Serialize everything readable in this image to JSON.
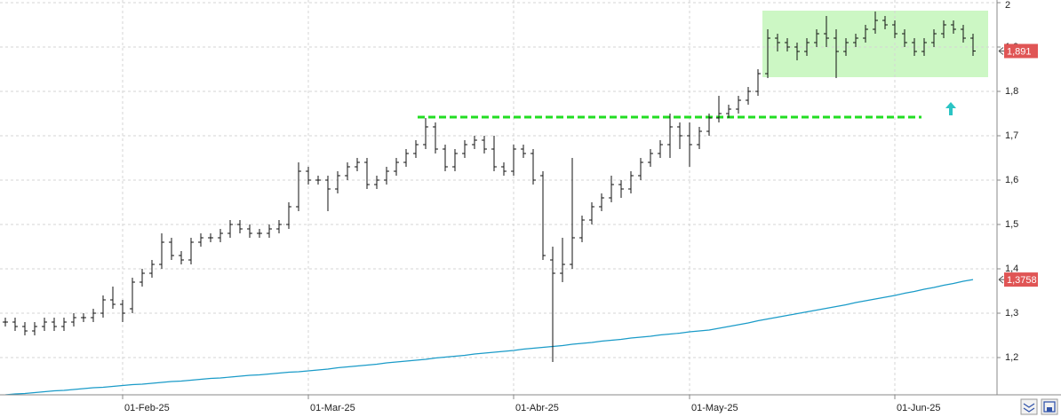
{
  "chart_data": {
    "type": "ohlc",
    "categories": [
      null,
      null,
      null,
      null,
      null,
      null,
      null,
      null,
      null,
      null,
      null,
      null,
      "01-Feb-25",
      null,
      null,
      null,
      null,
      null,
      null,
      null,
      null,
      null,
      null,
      null,
      null,
      null,
      null,
      null,
      null,
      null,
      null,
      "01-Mar-25",
      null,
      null,
      null,
      null,
      null,
      null,
      null,
      null,
      null,
      null,
      null,
      null,
      null,
      null,
      null,
      null,
      null,
      null,
      null,
      null,
      "01-Abr-25",
      null,
      null,
      null,
      null,
      null,
      null,
      null,
      null,
      null,
      null,
      null,
      null,
      null,
      null,
      null,
      null,
      null,
      "01-May-25",
      null,
      null,
      null,
      null,
      null,
      null,
      null,
      null,
      null,
      null,
      null,
      null,
      null,
      null,
      null,
      null,
      null,
      null,
      null,
      null,
      "01-Jun-25",
      null,
      null,
      null,
      null,
      null,
      null,
      null,
      null
    ],
    "open": [
      1.28,
      1.28,
      1.27,
      1.26,
      1.27,
      1.28,
      1.27,
      1.28,
      1.29,
      1.29,
      1.3,
      1.33,
      1.32,
      1.31,
      1.37,
      1.39,
      1.41,
      1.46,
      1.43,
      1.42,
      1.46,
      1.47,
      1.47,
      1.48,
      1.5,
      1.49,
      1.48,
      1.48,
      1.49,
      1.5,
      1.54,
      1.62,
      1.6,
      1.6,
      1.58,
      1.61,
      1.63,
      1.64,
      1.59,
      1.6,
      1.62,
      1.64,
      1.66,
      1.68,
      1.72,
      1.67,
      1.63,
      1.66,
      1.68,
      1.69,
      1.67,
      1.63,
      1.62,
      1.67,
      1.66,
      1.61,
      1.42,
      1.39,
      1.41,
      1.47,
      1.51,
      1.54,
      1.56,
      1.59,
      1.58,
      1.61,
      1.64,
      1.66,
      1.68,
      1.72,
      1.7,
      1.68,
      1.71,
      1.74,
      1.75,
      1.76,
      1.78,
      1.8,
      1.84,
      1.92,
      1.91,
      1.9,
      1.89,
      1.91,
      1.93,
      1.92,
      1.89,
      1.91,
      1.92,
      1.94,
      1.96,
      1.95,
      1.93,
      1.91,
      1.89,
      1.91,
      1.93,
      1.95,
      1.94,
      1.92
    ],
    "high": [
      1.29,
      1.29,
      1.28,
      1.28,
      1.29,
      1.29,
      1.29,
      1.3,
      1.3,
      1.31,
      1.34,
      1.36,
      1.33,
      1.38,
      1.4,
      1.42,
      1.48,
      1.47,
      1.44,
      1.47,
      1.48,
      1.48,
      1.49,
      1.51,
      1.51,
      1.5,
      1.49,
      1.5,
      1.51,
      1.55,
      1.64,
      1.63,
      1.61,
      1.61,
      1.62,
      1.64,
      1.65,
      1.65,
      1.61,
      1.63,
      1.65,
      1.67,
      1.69,
      1.74,
      1.73,
      1.68,
      1.67,
      1.69,
      1.7,
      1.7,
      1.7,
      1.64,
      1.68,
      1.68,
      1.67,
      1.62,
      1.45,
      1.47,
      1.65,
      1.52,
      1.55,
      1.57,
      1.61,
      1.6,
      1.62,
      1.65,
      1.67,
      1.69,
      1.75,
      1.73,
      1.73,
      1.72,
      1.75,
      1.79,
      1.77,
      1.79,
      1.81,
      1.85,
      1.94,
      1.93,
      1.92,
      1.91,
      1.92,
      1.94,
      1.97,
      1.94,
      1.92,
      1.93,
      1.95,
      1.98,
      1.97,
      1.96,
      1.94,
      1.92,
      1.92,
      1.94,
      1.96,
      1.96,
      1.95,
      1.93
    ],
    "low": [
      1.27,
      1.26,
      1.25,
      1.25,
      1.26,
      1.26,
      1.26,
      1.27,
      1.28,
      1.28,
      1.29,
      1.31,
      1.28,
      1.3,
      1.36,
      1.38,
      1.4,
      1.42,
      1.41,
      1.41,
      1.45,
      1.46,
      1.46,
      1.47,
      1.48,
      1.47,
      1.47,
      1.47,
      1.48,
      1.49,
      1.53,
      1.59,
      1.59,
      1.53,
      1.57,
      1.6,
      1.62,
      1.58,
      1.58,
      1.59,
      1.61,
      1.63,
      1.65,
      1.67,
      1.66,
      1.62,
      1.62,
      1.65,
      1.67,
      1.66,
      1.62,
      1.61,
      1.61,
      1.65,
      1.59,
      1.42,
      1.19,
      1.37,
      1.4,
      1.46,
      1.5,
      1.53,
      1.55,
      1.56,
      1.57,
      1.6,
      1.63,
      1.65,
      1.65,
      1.67,
      1.63,
      1.67,
      1.7,
      1.73,
      1.74,
      1.75,
      1.77,
      1.79,
      1.83,
      1.89,
      1.89,
      1.87,
      1.88,
      1.9,
      1.9,
      1.83,
      1.88,
      1.9,
      1.91,
      1.93,
      1.94,
      1.92,
      1.9,
      1.88,
      1.88,
      1.9,
      1.92,
      1.93,
      1.91,
      1.88
    ],
    "close": [
      1.28,
      1.27,
      1.26,
      1.27,
      1.28,
      1.27,
      1.28,
      1.29,
      1.29,
      1.3,
      1.33,
      1.32,
      1.3,
      1.37,
      1.39,
      1.41,
      1.46,
      1.43,
      1.42,
      1.46,
      1.47,
      1.47,
      1.48,
      1.5,
      1.49,
      1.48,
      1.48,
      1.49,
      1.5,
      1.54,
      1.62,
      1.6,
      1.6,
      1.58,
      1.61,
      1.63,
      1.64,
      1.59,
      1.6,
      1.62,
      1.64,
      1.66,
      1.68,
      1.72,
      1.67,
      1.63,
      1.66,
      1.68,
      1.69,
      1.67,
      1.63,
      1.62,
      1.67,
      1.66,
      1.6,
      1.43,
      1.39,
      1.41,
      1.47,
      1.51,
      1.54,
      1.56,
      1.59,
      1.58,
      1.61,
      1.64,
      1.66,
      1.68,
      1.72,
      1.7,
      1.68,
      1.71,
      1.74,
      1.75,
      1.76,
      1.78,
      1.8,
      1.84,
      1.92,
      1.91,
      1.9,
      1.89,
      1.91,
      1.93,
      1.92,
      1.89,
      1.91,
      1.92,
      1.94,
      1.96,
      1.95,
      1.93,
      1.91,
      1.89,
      1.91,
      1.93,
      1.95,
      1.94,
      1.92,
      1.891
    ],
    "bar_color": "#111111",
    "line": {
      "color": "#1a9bc8",
      "values": [
        1.116,
        1.118,
        1.119,
        1.121,
        1.123,
        1.125,
        1.126,
        1.128,
        1.13,
        1.132,
        1.133,
        1.135,
        1.137,
        1.139,
        1.14,
        1.142,
        1.144,
        1.146,
        1.147,
        1.149,
        1.151,
        1.153,
        1.154,
        1.156,
        1.158,
        1.16,
        1.161,
        1.163,
        1.165,
        1.167,
        1.168,
        1.17,
        1.172,
        1.174,
        1.177,
        1.179,
        1.181,
        1.183,
        1.185,
        1.188,
        1.19,
        1.192,
        1.194,
        1.196,
        1.199,
        1.201,
        1.203,
        1.205,
        1.208,
        1.21,
        1.212,
        1.214,
        1.216,
        1.219,
        1.221,
        1.223,
        1.225,
        1.227,
        1.23,
        1.232,
        1.234,
        1.237,
        1.239,
        1.241,
        1.244,
        1.246,
        1.248,
        1.251,
        1.253,
        1.255,
        1.258,
        1.26,
        1.262,
        1.266,
        1.27,
        1.274,
        1.278,
        1.283,
        1.287,
        1.291,
        1.295,
        1.299,
        1.303,
        1.307,
        1.311,
        1.315,
        1.319,
        1.324,
        1.328,
        1.332,
        1.336,
        1.34,
        1.345,
        1.349,
        1.354,
        1.358,
        1.363,
        1.367,
        1.372,
        1.3758
      ]
    },
    "ylim": [
      1.116,
      2.006
    ],
    "yticks": [
      {
        "value": 1.2,
        "label": "1,2"
      },
      {
        "value": 1.3,
        "label": "1,3"
      },
      {
        "value": 1.4,
        "label": "1,4"
      },
      {
        "value": 1.5,
        "label": "1,5"
      },
      {
        "value": 1.6,
        "label": "1,6"
      },
      {
        "value": 1.7,
        "label": "1,7"
      },
      {
        "value": 1.8,
        "label": "1,8"
      },
      {
        "value": 1.9,
        "label": "1,9"
      },
      2
    ],
    "grid": true,
    "price_labels": [
      {
        "value": 1.891,
        "label": "1,891",
        "color": "#e05555"
      },
      {
        "value": 1.3758,
        "label": "1,3758",
        "color": "#e05555"
      }
    ],
    "resistance": {
      "value": 1.742,
      "color": "#22dd22"
    },
    "range_box": {
      "ylim": [
        1.832,
        1.982
      ],
      "color": "#ccf7c4"
    }
  }
}
